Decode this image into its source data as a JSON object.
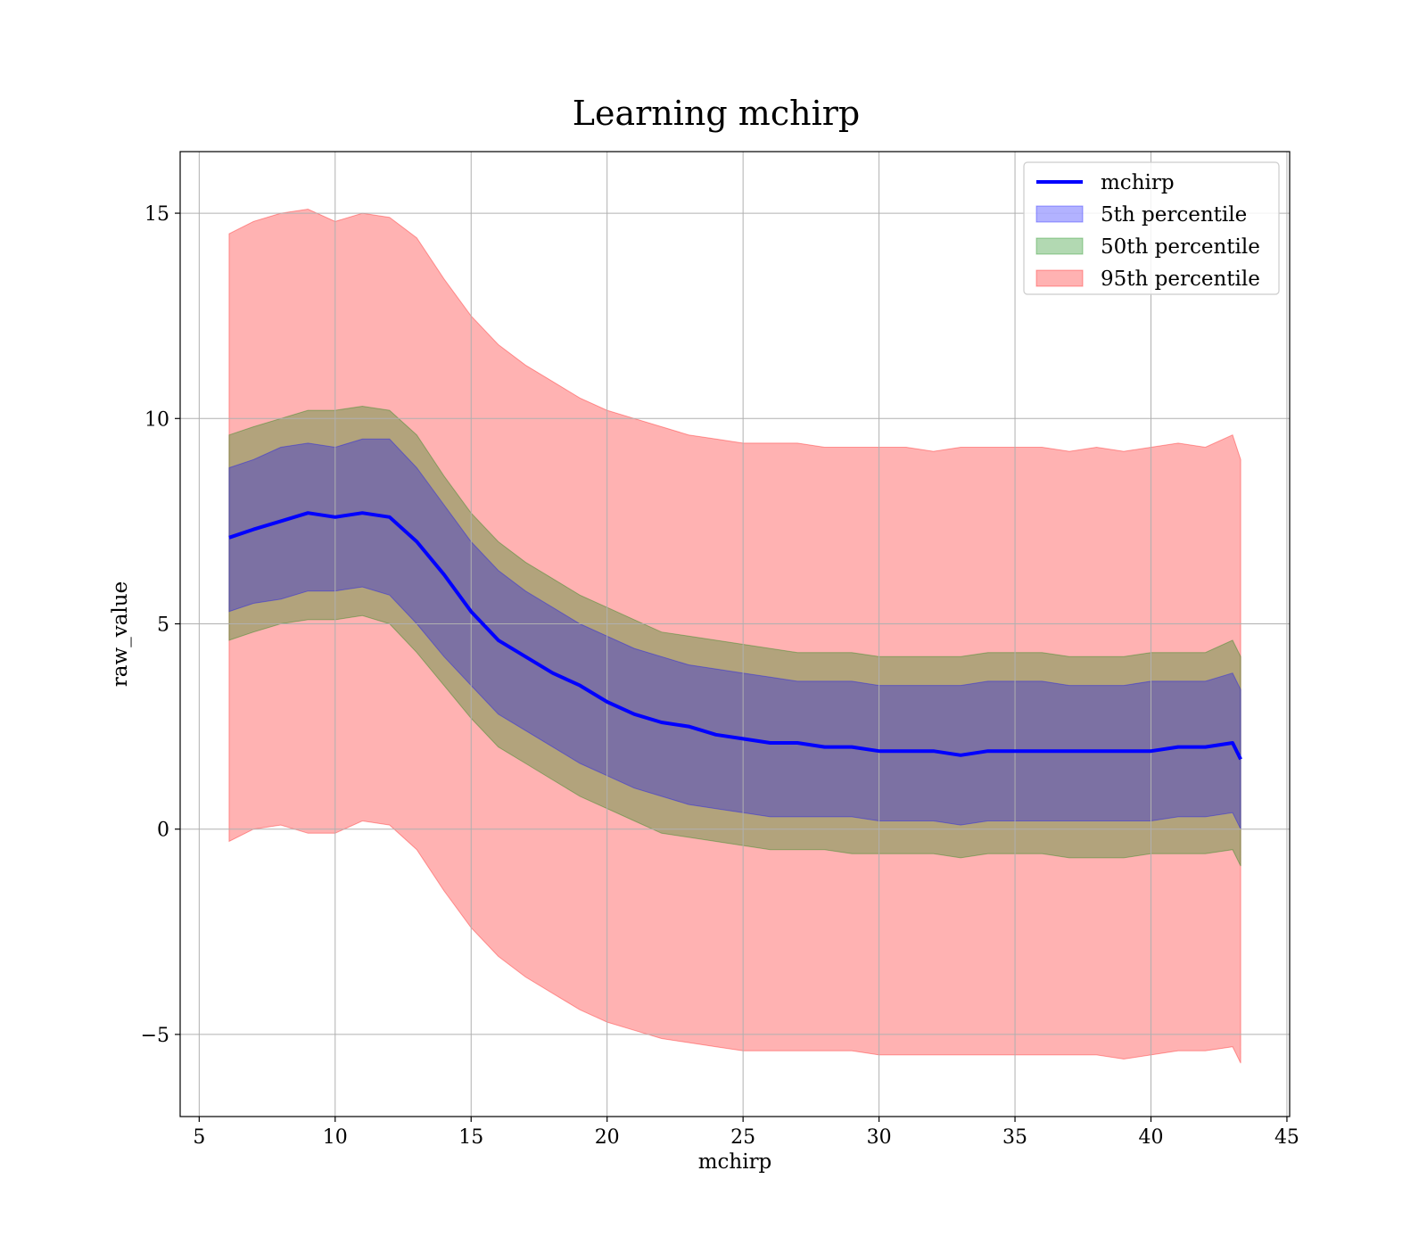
{
  "chart_data": {
    "type": "area",
    "title": "Learning mchirp",
    "xlabel": "mchirp",
    "ylabel": "raw_value",
    "xlim": [
      4.3,
      45.1
    ],
    "ylim": [
      -7.0,
      16.5
    ],
    "xticks": [
      5,
      10,
      15,
      20,
      25,
      30,
      35,
      40,
      45
    ],
    "yticks": [
      -5,
      0,
      5,
      10,
      15
    ],
    "xtick_labels": [
      "5",
      "10",
      "15",
      "20",
      "25",
      "30",
      "35",
      "40",
      "45"
    ],
    "ytick_labels": [
      "−5",
      "0",
      "5",
      "10",
      "15"
    ],
    "grid": true,
    "legend_position": "top-right",
    "legend": [
      {
        "label": "mchirp",
        "kind": "line",
        "color": "#0000ff"
      },
      {
        "label": "5th percentile",
        "kind": "patch",
        "color": "#0000ff"
      },
      {
        "label": "50th percentile",
        "kind": "patch",
        "color": "#008000"
      },
      {
        "label": "95th percentile",
        "kind": "patch",
        "color": "#ff0000"
      }
    ],
    "x": [
      6.1,
      7,
      8,
      9,
      10,
      11,
      12,
      13,
      14,
      15,
      16,
      17,
      18,
      19,
      20,
      21,
      22,
      23,
      24,
      25,
      26,
      27,
      28,
      29,
      30,
      31,
      32,
      33,
      34,
      35,
      36,
      37,
      38,
      39,
      40,
      41,
      42,
      43,
      43.3
    ],
    "series": [
      {
        "name": "mchirp",
        "type": "line",
        "color": "#0000ff",
        "values": [
          7.1,
          7.3,
          7.5,
          7.7,
          7.6,
          7.7,
          7.6,
          7.0,
          6.2,
          5.3,
          4.6,
          4.2,
          3.8,
          3.5,
          3.1,
          2.8,
          2.6,
          2.5,
          2.3,
          2.2,
          2.1,
          2.1,
          2.0,
          2.0,
          1.9,
          1.9,
          1.9,
          1.8,
          1.9,
          1.9,
          1.9,
          1.9,
          1.9,
          1.9,
          1.9,
          2.0,
          2.0,
          2.1,
          1.7
        ]
      },
      {
        "name": "5th percentile",
        "type": "band",
        "color": "#0000ff",
        "upper": [
          8.8,
          9.0,
          9.3,
          9.4,
          9.3,
          9.5,
          9.5,
          8.8,
          7.9,
          7.0,
          6.3,
          5.8,
          5.4,
          5.0,
          4.7,
          4.4,
          4.2,
          4.0,
          3.9,
          3.8,
          3.7,
          3.6,
          3.6,
          3.6,
          3.5,
          3.5,
          3.5,
          3.5,
          3.6,
          3.6,
          3.6,
          3.5,
          3.5,
          3.5,
          3.6,
          3.6,
          3.6,
          3.8,
          3.4
        ],
        "lower": [
          5.3,
          5.5,
          5.6,
          5.8,
          5.8,
          5.9,
          5.7,
          5.0,
          4.2,
          3.5,
          2.8,
          2.4,
          2.0,
          1.6,
          1.3,
          1.0,
          0.8,
          0.6,
          0.5,
          0.4,
          0.3,
          0.3,
          0.3,
          0.3,
          0.2,
          0.2,
          0.2,
          0.1,
          0.2,
          0.2,
          0.2,
          0.2,
          0.2,
          0.2,
          0.2,
          0.3,
          0.3,
          0.4,
          0.0
        ]
      },
      {
        "name": "50th percentile",
        "type": "band",
        "color": "#008000",
        "upper": [
          9.6,
          9.8,
          10.0,
          10.2,
          10.2,
          10.3,
          10.2,
          9.6,
          8.6,
          7.7,
          7.0,
          6.5,
          6.1,
          5.7,
          5.4,
          5.1,
          4.8,
          4.7,
          4.6,
          4.5,
          4.4,
          4.3,
          4.3,
          4.3,
          4.2,
          4.2,
          4.2,
          4.2,
          4.3,
          4.3,
          4.3,
          4.2,
          4.2,
          4.2,
          4.3,
          4.3,
          4.3,
          4.6,
          4.2
        ],
        "lower": [
          4.6,
          4.8,
          5.0,
          5.1,
          5.1,
          5.2,
          5.0,
          4.3,
          3.5,
          2.7,
          2.0,
          1.6,
          1.2,
          0.8,
          0.5,
          0.2,
          -0.1,
          -0.2,
          -0.3,
          -0.4,
          -0.5,
          -0.5,
          -0.5,
          -0.6,
          -0.6,
          -0.6,
          -0.6,
          -0.7,
          -0.6,
          -0.6,
          -0.6,
          -0.7,
          -0.7,
          -0.7,
          -0.6,
          -0.6,
          -0.6,
          -0.5,
          -0.9
        ]
      },
      {
        "name": "95th percentile",
        "type": "band",
        "color": "#ff0000",
        "upper": [
          14.5,
          14.8,
          15.0,
          15.1,
          14.8,
          15.0,
          14.9,
          14.4,
          13.4,
          12.5,
          11.8,
          11.3,
          10.9,
          10.5,
          10.2,
          10.0,
          9.8,
          9.6,
          9.5,
          9.4,
          9.4,
          9.4,
          9.3,
          9.3,
          9.3,
          9.3,
          9.2,
          9.3,
          9.3,
          9.3,
          9.3,
          9.2,
          9.3,
          9.2,
          9.3,
          9.4,
          9.3,
          9.6,
          9.0
        ],
        "lower": [
          -0.3,
          0.0,
          0.1,
          -0.1,
          -0.1,
          0.2,
          0.1,
          -0.5,
          -1.5,
          -2.4,
          -3.1,
          -3.6,
          -4.0,
          -4.4,
          -4.7,
          -4.9,
          -5.1,
          -5.2,
          -5.3,
          -5.4,
          -5.4,
          -5.4,
          -5.4,
          -5.4,
          -5.5,
          -5.5,
          -5.5,
          -5.5,
          -5.5,
          -5.5,
          -5.5,
          -5.5,
          -5.5,
          -5.6,
          -5.5,
          -5.4,
          -5.4,
          -5.3,
          -5.7
        ]
      }
    ]
  }
}
